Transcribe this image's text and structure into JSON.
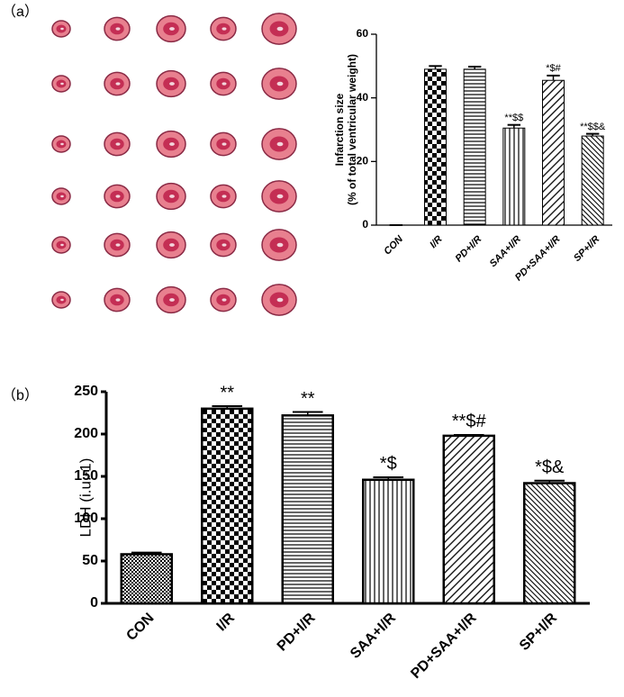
{
  "chart_data": [
    {
      "type": "bar",
      "panel_label": "（a）",
      "ylabel": [
        "Infarction size",
        "(% of total ventricular weight)"
      ],
      "categories": [
        "CON",
        "I/R",
        "PD+I/R",
        "SAA+I/R",
        "PD+SAA+I/R",
        "SP+I/R"
      ],
      "values": [
        0,
        49,
        49,
        30.5,
        45.5,
        28
      ],
      "errors": [
        0,
        1,
        0.8,
        1,
        1.5,
        0.7
      ],
      "annotations": [
        null,
        null,
        null,
        "**$$",
        "*$#",
        "**$$&"
      ],
      "patterns": [
        "fine-check",
        "check",
        "horizontal",
        "vertical",
        "diagonal",
        "back-diagonal"
      ],
      "color": "#000000",
      "ylim": [
        0,
        60
      ],
      "yticks": [
        0,
        20,
        40,
        60
      ]
    },
    {
      "type": "bar",
      "panel_label": "（b）",
      "ylabel": [
        "LDH (i.u.-1)"
      ],
      "categories": [
        "CON",
        "I/R",
        "PD+I/R",
        "SAA+I/R",
        "PD+SAA+I/R",
        "SP+I/R"
      ],
      "values": [
        58,
        230,
        222,
        146,
        198,
        142
      ],
      "errors": [
        2,
        3,
        4,
        3,
        1,
        3
      ],
      "annotations": [
        null,
        "**",
        "**",
        "*$",
        "**$#",
        "*$&"
      ],
      "patterns": [
        "fine-check",
        "check",
        "horizontal",
        "vertical",
        "diagonal",
        "back-diagonal"
      ],
      "color": "#000000",
      "ylim": [
        0,
        250
      ],
      "yticks": [
        0,
        50,
        100,
        150,
        200,
        250
      ]
    }
  ]
}
